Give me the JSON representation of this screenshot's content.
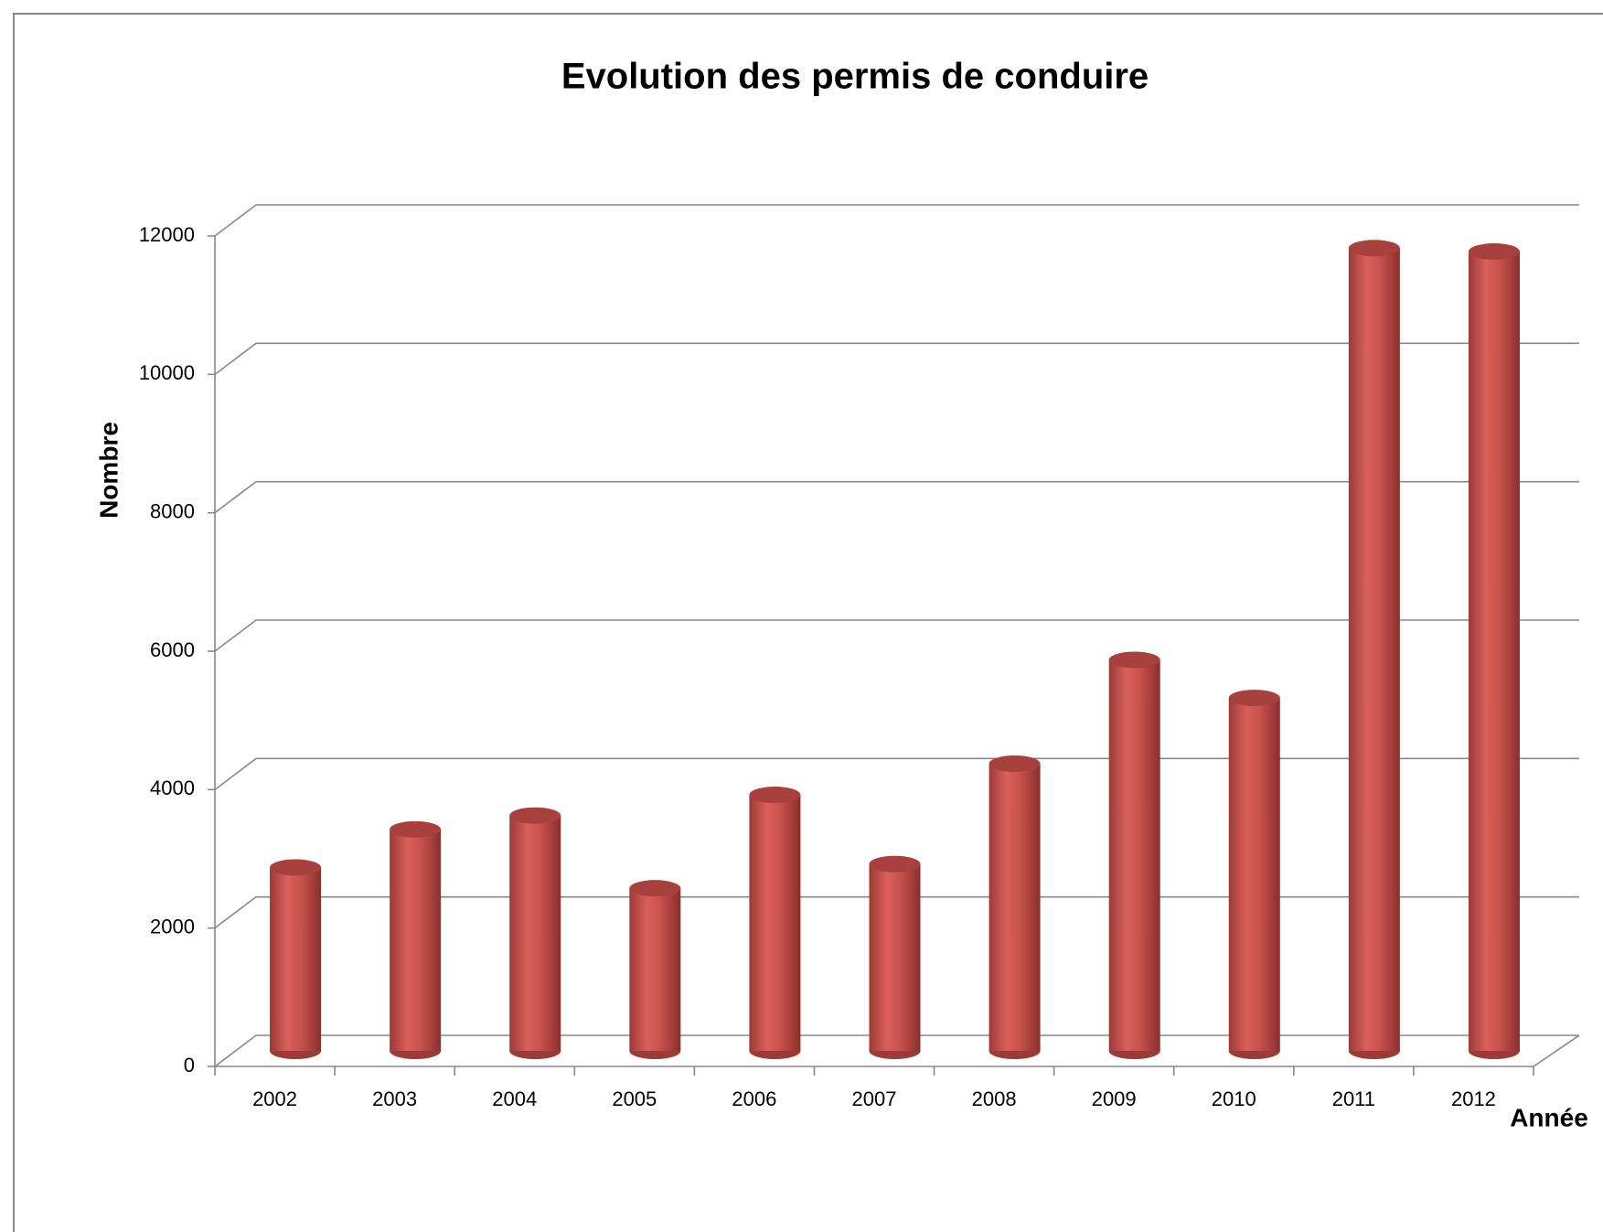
{
  "chart_data": {
    "type": "bar",
    "title": "Evolution des permis de conduire",
    "x_label": "Année",
    "y_label": "Nombre",
    "categories": [
      "2002",
      "2003",
      "2004",
      "2005",
      "2006",
      "2007",
      "2008",
      "2009",
      "2010",
      "2011",
      "2012"
    ],
    "values": [
      2650,
      3200,
      3400,
      2350,
      3700,
      2700,
      4150,
      5650,
      5100,
      11600,
      11550
    ],
    "color": "#c0504d",
    "ylim": [
      0,
      12000
    ],
    "yticks": [
      0,
      2000,
      4000,
      6000,
      8000,
      10000,
      12000
    ],
    "grid": true
  }
}
